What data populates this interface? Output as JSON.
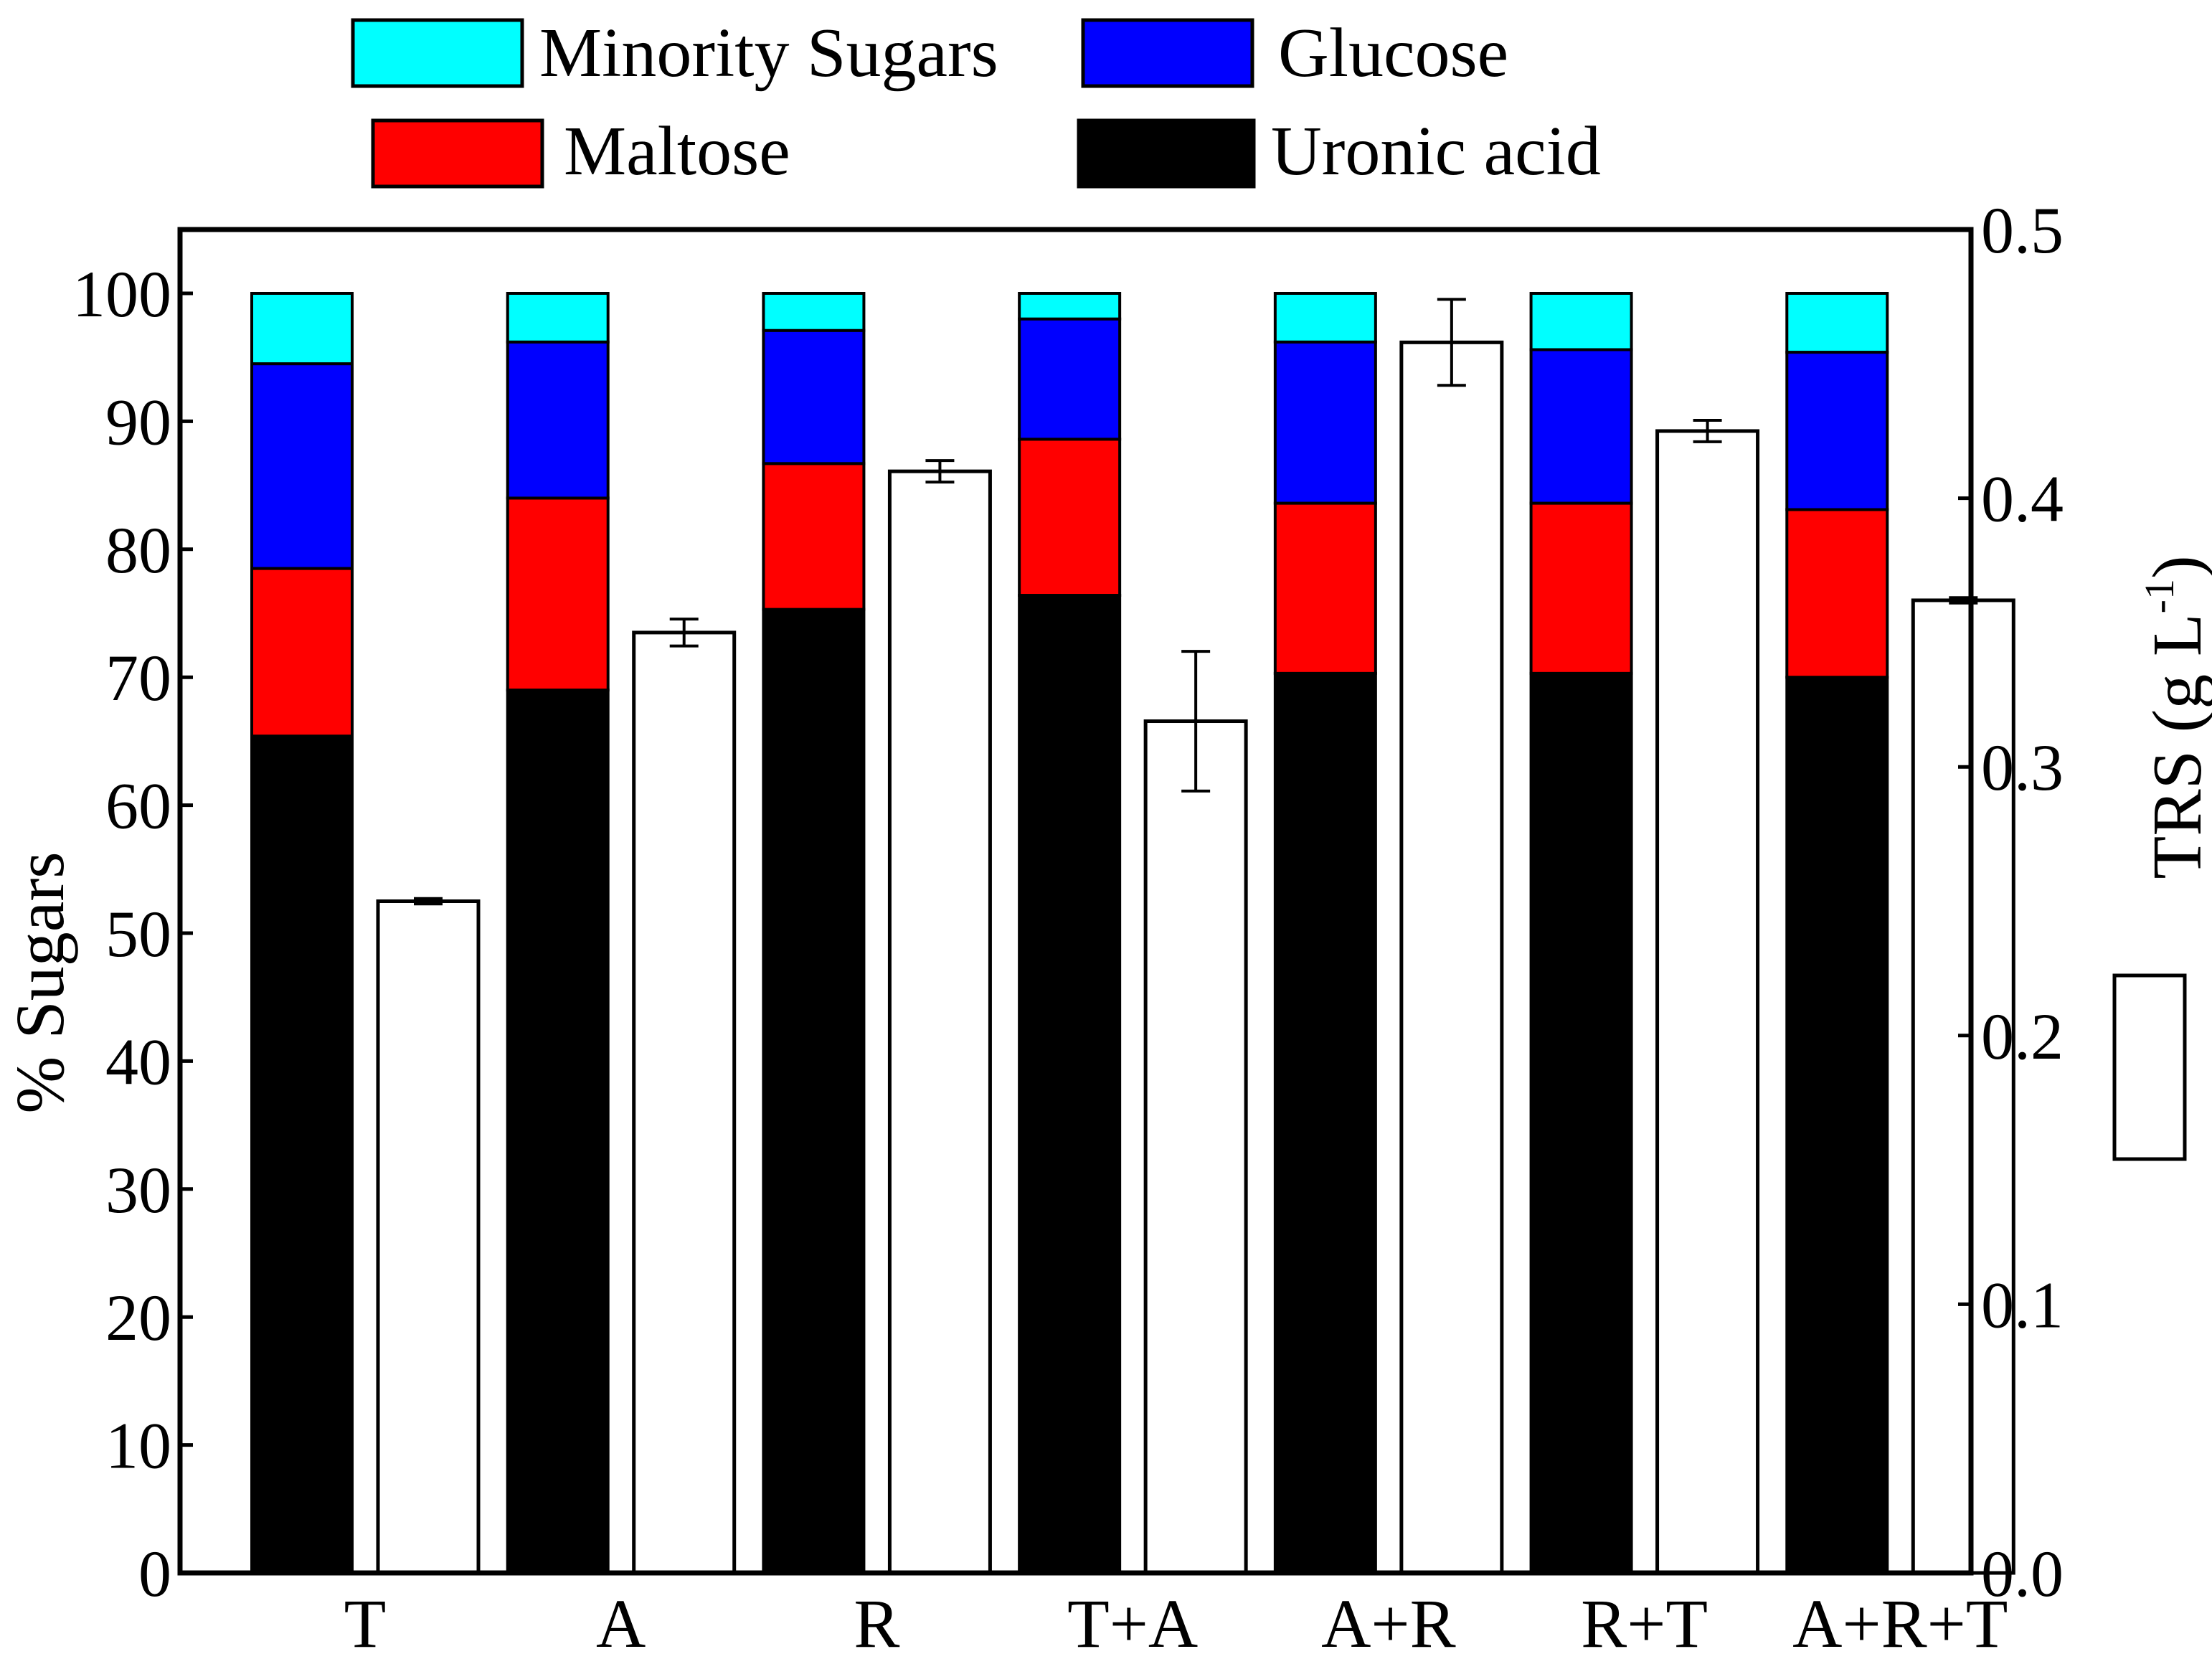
{
  "chart_data": {
    "type": "bar",
    "categories": [
      "T",
      "A",
      "R",
      "T+A",
      "A+R",
      "R+T",
      "A+R+T"
    ],
    "stacked_series": [
      {
        "name": "Uronic acid",
        "color": "#000000",
        "values": [
          65.4,
          69.0,
          75.3,
          76.4,
          70.3,
          70.3,
          70.0
        ]
      },
      {
        "name": "Maltose",
        "color": "#ff0000",
        "values": [
          13.1,
          15.0,
          11.4,
          12.2,
          13.3,
          13.3,
          13.1
        ]
      },
      {
        "name": "Glucose",
        "color": "#0000ff",
        "values": [
          16.0,
          12.2,
          10.4,
          9.4,
          12.6,
          12.0,
          12.3
        ]
      },
      {
        "name": "Minority Sugars",
        "color": "#00ffff",
        "values": [
          5.5,
          3.8,
          2.9,
          2.0,
          3.8,
          4.4,
          4.6
        ]
      }
    ],
    "trs_series": {
      "name": "TRS",
      "color": "#ffffff",
      "values": [
        0.25,
        0.35,
        0.41,
        0.317,
        0.458,
        0.425,
        0.362
      ],
      "errors": [
        0.001,
        0.005,
        0.004,
        0.026,
        0.016,
        0.004,
        0.001
      ]
    },
    "ylabel": "% Sugars",
    "y2label_main": "TRS (g L",
    "y2label_sup": "-1",
    "y2label_close": ")",
    "ylim": [
      0,
      105
    ],
    "y2lim": [
      0,
      0.5
    ],
    "yticks": [
      "0",
      "10",
      "20",
      "30",
      "40",
      "50",
      "60",
      "70",
      "80",
      "90",
      "100"
    ],
    "y2ticks": [
      "0.0",
      "0.1",
      "0.2",
      "0.3",
      "0.4",
      "0.5"
    ],
    "legend": [
      {
        "label": "Minority Sugars",
        "color": "#00ffff"
      },
      {
        "label": "Glucose",
        "color": "#0000ff"
      },
      {
        "label": "Maltose",
        "color": "#ff0000"
      },
      {
        "label": "Uronic acid",
        "color": "#000000"
      }
    ],
    "legend_trs_color": "#ffffff",
    "legend_placement": "top"
  }
}
